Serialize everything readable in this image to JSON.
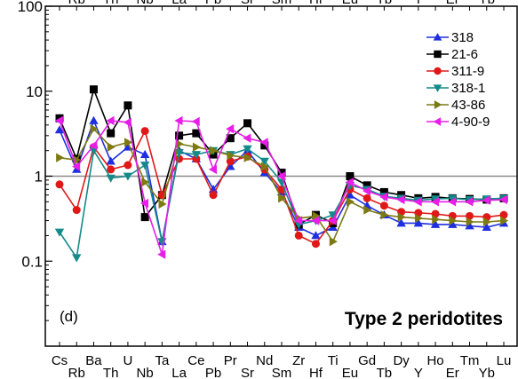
{
  "chart_data": {
    "type": "line",
    "title": "Type 2 peridotites",
    "panel_label": "(d)",
    "yscale": "log",
    "ylim": [
      0.01,
      100
    ],
    "yticks": [
      {
        "value": 0.1,
        "label": "0.1"
      },
      {
        "value": 1,
        "label": "1"
      },
      {
        "value": 10,
        "label": "10"
      },
      {
        "value": 100,
        "label": "100"
      }
    ],
    "reference_line": 1,
    "grid": false,
    "legend_position": "top-right",
    "categories": [
      "Cs",
      "Rb",
      "Ba",
      "Th",
      "U",
      "Nb",
      "Ta",
      "La",
      "Ce",
      "Pb",
      "Pr",
      "Sr",
      "Nd",
      "Sm",
      "Zr",
      "Hf",
      "Ti",
      "Eu",
      "Gd",
      "Tb",
      "Dy",
      "Y",
      "Ho",
      "Er",
      "Tm",
      "Yb",
      "Lu"
    ],
    "top_labels": [
      "Rb",
      "Th",
      "Nb",
      "La",
      "Pb",
      "Sr",
      "Sm",
      "Hf",
      "Eu",
      "Tb",
      "Y",
      "Er",
      "Yb"
    ],
    "series": [
      {
        "name": "318",
        "color": "#1f2fe0",
        "marker": "triangle-up",
        "values": [
          3.5,
          1.2,
          4.5,
          1.5,
          2.2,
          1.8,
          0.17,
          2.0,
          1.6,
          0.7,
          1.3,
          2.0,
          1.1,
          0.65,
          0.25,
          0.2,
          0.25,
          0.6,
          0.45,
          0.35,
          0.28,
          0.28,
          0.27,
          0.27,
          0.26,
          0.25,
          0.28
        ]
      },
      {
        "name": "21-6",
        "color": "#000000",
        "marker": "square",
        "values": [
          4.8,
          1.6,
          10.5,
          3.2,
          6.8,
          0.33,
          0.6,
          3.0,
          3.2,
          1.8,
          2.8,
          4.2,
          2.3,
          1.1,
          0.27,
          0.35,
          0.28,
          1.0,
          0.78,
          0.65,
          0.6,
          0.55,
          0.57,
          0.55,
          0.54,
          0.53,
          0.55
        ]
      },
      {
        "name": "311-9",
        "color": "#e01818",
        "marker": "circle",
        "values": [
          0.8,
          0.4,
          2.2,
          1.2,
          1.35,
          3.4,
          0.6,
          1.6,
          1.6,
          0.6,
          1.5,
          1.7,
          1.2,
          0.7,
          0.2,
          0.16,
          0.3,
          0.7,
          0.55,
          0.45,
          0.38,
          0.37,
          0.36,
          0.34,
          0.34,
          0.33,
          0.35
        ]
      },
      {
        "name": "318-1",
        "color": "#148a8a",
        "marker": "triangle-down",
        "values": [
          0.22,
          0.11,
          2.0,
          0.95,
          1.0,
          1.35,
          0.17,
          1.9,
          1.8,
          2.0,
          1.8,
          2.1,
          1.5,
          0.85,
          0.27,
          0.3,
          0.35,
          0.78,
          0.7,
          0.58,
          0.55,
          0.52,
          0.54,
          0.55,
          0.53,
          0.54,
          0.55
        ]
      },
      {
        "name": "43-86",
        "color": "#7d7a12",
        "marker": "triangle-right",
        "values": [
          1.65,
          1.55,
          3.6,
          2.2,
          2.5,
          0.85,
          0.47,
          2.4,
          2.2,
          2.0,
          1.75,
          1.65,
          1.3,
          0.55,
          0.32,
          0.34,
          0.17,
          0.5,
          0.4,
          0.35,
          0.33,
          0.32,
          0.31,
          0.3,
          0.29,
          0.29,
          0.3
        ]
      },
      {
        "name": "4-90-9",
        "color": "#e81ee8",
        "marker": "triangle-left",
        "values": [
          4.5,
          1.3,
          2.3,
          4.5,
          4.3,
          0.48,
          0.12,
          4.5,
          4.4,
          1.2,
          3.6,
          2.8,
          2.5,
          1.0,
          0.3,
          0.3,
          0.3,
          0.85,
          0.67,
          0.57,
          0.53,
          0.5,
          0.5,
          0.5,
          0.5,
          0.52,
          0.53
        ]
      }
    ]
  }
}
